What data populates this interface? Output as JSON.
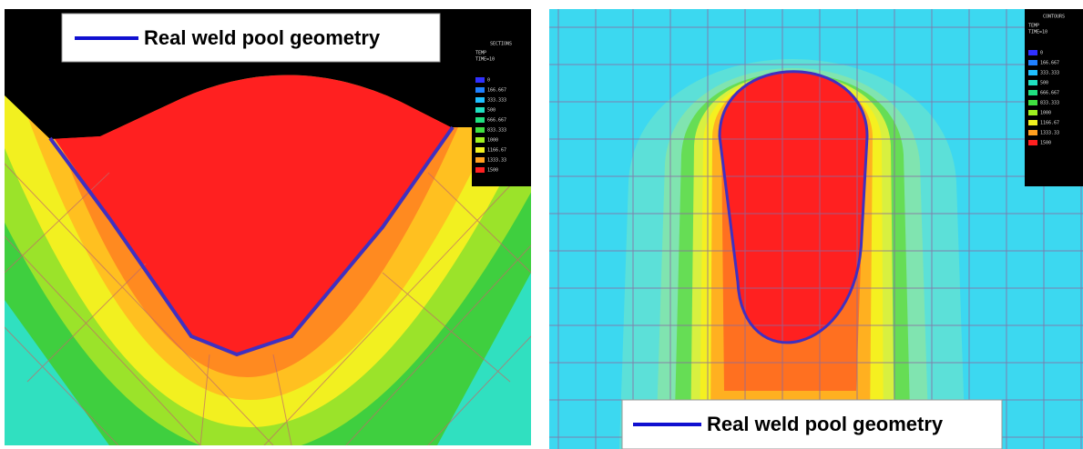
{
  "panels": [
    {
      "label": "Real weld pool geometry",
      "legend": {
        "title": "SECTIONS",
        "lines": [
          "TEMP",
          "TIME=10"
        ],
        "entries": [
          "0",
          "166.667",
          "333.333",
          "500",
          "666.667",
          "833.333",
          "1000",
          "1166.67",
          "1333.33",
          "1500"
        ]
      }
    },
    {
      "label": "Real weld pool geometry",
      "legend": {
        "title": "CONTOURS",
        "lines": [
          "TEMP",
          "TIME=10"
        ],
        "entries": [
          "0",
          "166.667",
          "333.333",
          "500",
          "666.667",
          "833.333",
          "1000",
          "1166.67",
          "1333.33",
          "1500"
        ]
      }
    }
  ]
}
